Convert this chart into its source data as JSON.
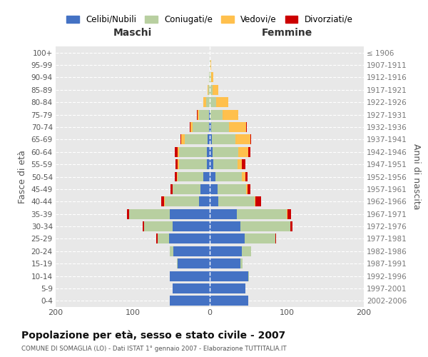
{
  "age_groups": [
    "0-4",
    "5-9",
    "10-14",
    "15-19",
    "20-24",
    "25-29",
    "30-34",
    "35-39",
    "40-44",
    "45-49",
    "50-54",
    "55-59",
    "60-64",
    "65-69",
    "70-74",
    "75-79",
    "80-84",
    "85-89",
    "90-94",
    "95-99",
    "100+"
  ],
  "birth_years": [
    "2002-2006",
    "1997-2001",
    "1992-1996",
    "1987-1991",
    "1982-1986",
    "1977-1981",
    "1972-1976",
    "1967-1971",
    "1962-1966",
    "1957-1961",
    "1952-1956",
    "1947-1951",
    "1942-1946",
    "1937-1941",
    "1932-1936",
    "1927-1931",
    "1922-1926",
    "1917-1921",
    "1912-1916",
    "1907-1911",
    "≤ 1906"
  ],
  "male": {
    "celibi": [
      52,
      48,
      52,
      42,
      47,
      53,
      48,
      52,
      14,
      12,
      8,
      4,
      4,
      3,
      1,
      1,
      0,
      0,
      0,
      0,
      0
    ],
    "coniugati": [
      0,
      0,
      0,
      1,
      5,
      15,
      37,
      53,
      44,
      36,
      34,
      36,
      36,
      29,
      21,
      13,
      5,
      2,
      1,
      0,
      0
    ],
    "vedovi": [
      0,
      0,
      0,
      0,
      0,
      0,
      0,
      0,
      1,
      0,
      1,
      2,
      2,
      5,
      3,
      2,
      3,
      1,
      0,
      0,
      0
    ],
    "divorziati": [
      0,
      0,
      0,
      0,
      0,
      1,
      2,
      2,
      4,
      3,
      2,
      2,
      3,
      1,
      1,
      1,
      0,
      0,
      0,
      0,
      0
    ]
  },
  "female": {
    "nubili": [
      50,
      46,
      50,
      40,
      42,
      45,
      40,
      35,
      11,
      10,
      7,
      5,
      4,
      3,
      2,
      1,
      0,
      0,
      0,
      0,
      0
    ],
    "coniugate": [
      0,
      0,
      1,
      3,
      12,
      40,
      65,
      65,
      47,
      37,
      35,
      31,
      33,
      30,
      23,
      16,
      8,
      4,
      2,
      1,
      0
    ],
    "vedove": [
      0,
      0,
      0,
      0,
      0,
      0,
      0,
      1,
      1,
      2,
      4,
      6,
      13,
      20,
      22,
      20,
      16,
      7,
      3,
      1,
      0
    ],
    "divorziate": [
      0,
      0,
      0,
      0,
      0,
      1,
      2,
      5,
      8,
      4,
      3,
      4,
      3,
      1,
      1,
      0,
      0,
      0,
      0,
      0,
      0
    ]
  },
  "colors": {
    "celibi": "#4472c4",
    "coniugati": "#b8cfa0",
    "vedovi": "#ffc04d",
    "divorziati": "#cc0000"
  },
  "title": "Popolazione per età, sesso e stato civile - 2007",
  "subtitle": "COMUNE DI SOMAGLIA (LO) - Dati ISTAT 1° gennaio 2007 - Elaborazione TUTTITALIA.IT",
  "xlabel_left": "Maschi",
  "xlabel_right": "Femmine",
  "ylabel_left": "Fasce di età",
  "ylabel_right": "Anni di nascita",
  "xlim": 200,
  "legend_labels": [
    "Celibi/Nubili",
    "Coniugati/e",
    "Vedovi/e",
    "Divorziati/e"
  ],
  "bg_color": "#ffffff",
  "plot_bg_color": "#e8e8e8",
  "grid_color": "#ffffff"
}
